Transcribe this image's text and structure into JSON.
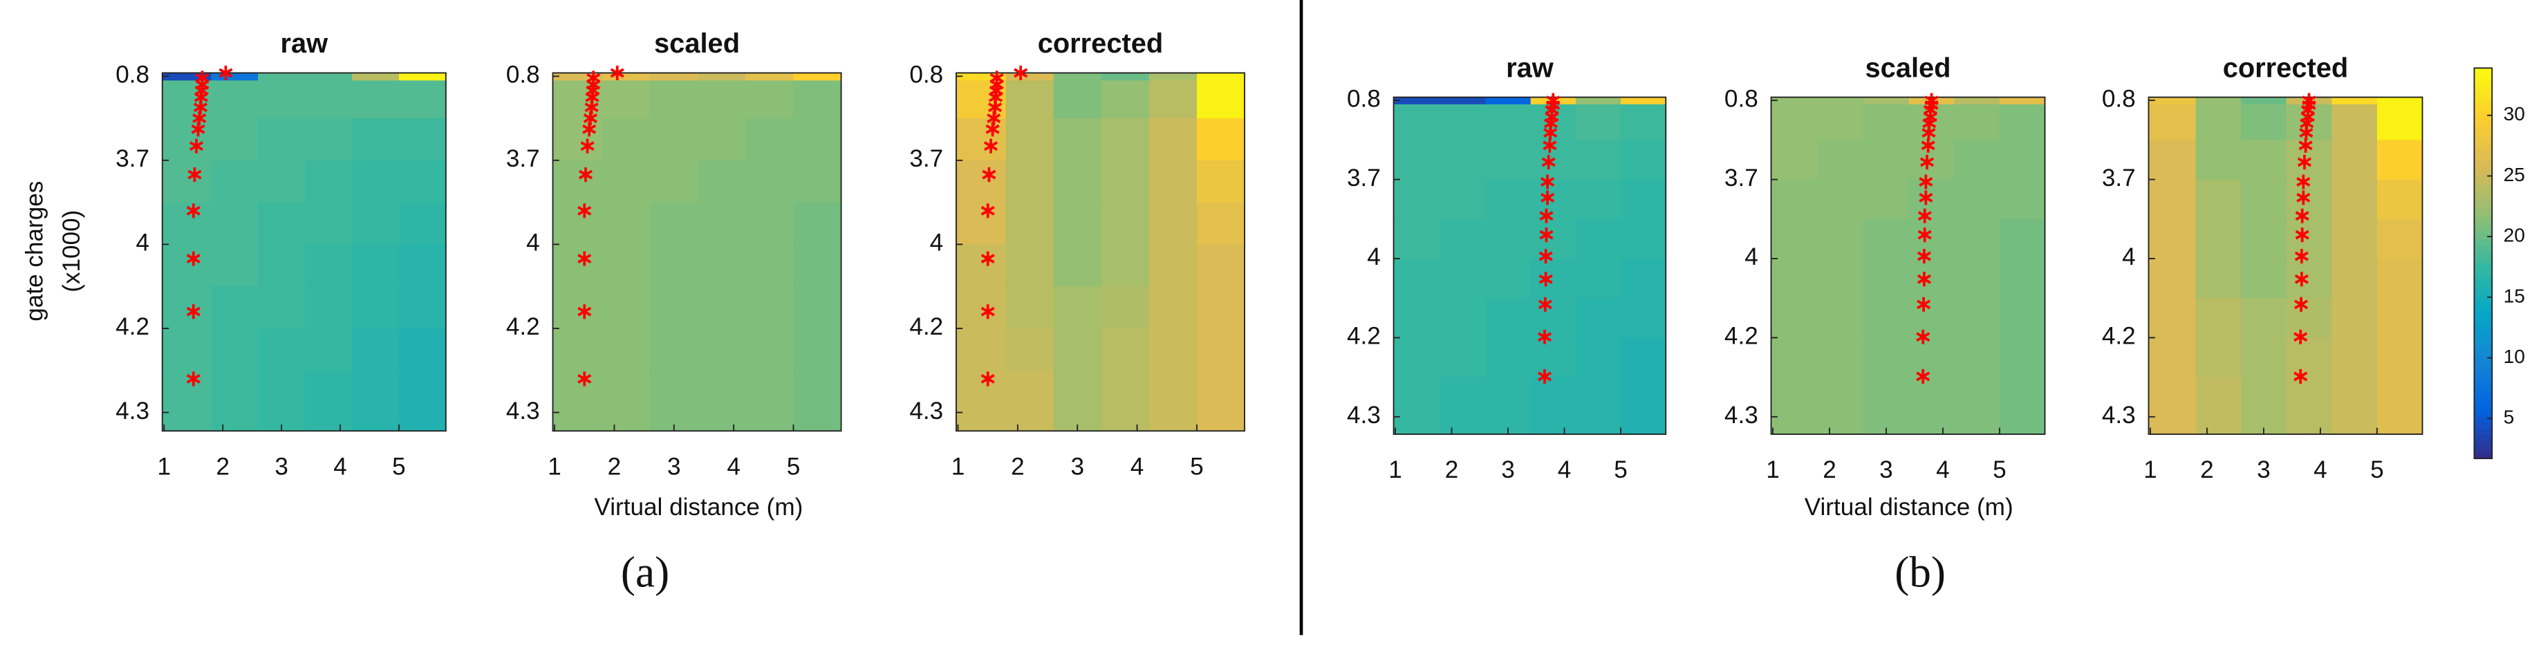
{
  "figure": {
    "ylabel": [
      "gate charges",
      "(x1000)"
    ],
    "xlabels": [
      "Virtual distance (m)",
      "Virtual distance (m)"
    ],
    "captions": [
      "(a)",
      "(b)"
    ]
  },
  "colorbar": {
    "clim": [
      1.7,
      33.9
    ],
    "ticks": [
      5,
      10,
      15,
      20,
      25,
      30
    ]
  },
  "chart_data": [
    {
      "type": "heatmap",
      "title": "raw",
      "xlim": [
        0.97,
        5.8
      ],
      "xticks": [
        1,
        2,
        3,
        4,
        5
      ],
      "ylim": [
        -0.04,
        4.22
      ],
      "yticks": [
        {
          "value": 0,
          "label": "0.8"
        },
        {
          "value": 1,
          "label": "3.7"
        },
        {
          "value": 2,
          "label": "4"
        },
        {
          "value": 3,
          "label": "4.2"
        },
        {
          "value": 4,
          "label": "4.3"
        }
      ],
      "x_edges": [
        0.97,
        1.8,
        2.6,
        3.4,
        4.2,
        5,
        5.8
      ],
      "y_edges": [
        -0.04,
        0.05,
        0.5,
        1,
        1.5,
        2,
        2.5,
        3,
        3.5,
        4.22
      ],
      "z": [
        [
          4,
          8,
          19,
          19,
          24,
          33
        ],
        [
          19,
          19,
          19,
          19,
          19,
          19
        ],
        [
          19,
          19,
          18.5,
          18.5,
          18,
          18
        ],
        [
          19,
          18.5,
          18.5,
          18,
          17.5,
          17.5
        ],
        [
          18.5,
          18.5,
          18,
          18,
          17.5,
          17
        ],
        [
          18.5,
          18.5,
          18,
          17.5,
          17,
          16.5
        ],
        [
          18.5,
          18,
          18,
          17.5,
          17,
          16.5
        ],
        [
          18.5,
          18,
          17.5,
          17.5,
          16.5,
          16
        ],
        [
          18.5,
          18,
          17.5,
          17,
          16.5,
          16
        ]
      ],
      "points": {
        "color": "#ff0000",
        "x": [
          2.05,
          1.65,
          1.65,
          1.64,
          1.63,
          1.62,
          1.6,
          1.58,
          1.55,
          1.52,
          1.5,
          1.5,
          1.5,
          1.5
        ],
        "y": [
          -0.04,
          0.02,
          0.1,
          0.17,
          0.25,
          0.37,
          0.5,
          0.63,
          0.83,
          1.17,
          1.6,
          2.17,
          2.8,
          3.6
        ]
      }
    },
    {
      "type": "heatmap",
      "title": "scaled",
      "xlim": [
        0.97,
        5.8
      ],
      "xticks": [
        1,
        2,
        3,
        4,
        5
      ],
      "ylim": [
        -0.04,
        4.22
      ],
      "yticks": [
        {
          "value": 0,
          "label": "0.8"
        },
        {
          "value": 1,
          "label": "3.7"
        },
        {
          "value": 2,
          "label": "4"
        },
        {
          "value": 3,
          "label": "4.2"
        },
        {
          "value": 4,
          "label": "4.3"
        }
      ],
      "x_edges": [
        0.97,
        1.8,
        2.6,
        3.4,
        4.2,
        5,
        5.8
      ],
      "y_edges": [
        -0.04,
        0.05,
        0.5,
        1,
        1.5,
        2,
        2.5,
        3,
        3.5,
        4.22
      ],
      "z": [
        [
          26,
          27,
          26,
          25,
          27,
          30
        ],
        [
          22,
          22,
          21.5,
          21.5,
          21.5,
          21
        ],
        [
          22,
          21.5,
          21.5,
          21.5,
          21,
          21
        ],
        [
          21.5,
          21.5,
          21.5,
          21,
          21,
          21
        ],
        [
          21.5,
          21.5,
          21,
          21,
          21,
          20.5
        ],
        [
          21.5,
          21.5,
          21,
          21,
          21,
          20.5
        ],
        [
          21.5,
          21.5,
          21,
          21,
          21,
          20.5
        ],
        [
          21.5,
          21.5,
          21,
          21,
          21,
          20.5
        ],
        [
          21.5,
          21.5,
          21,
          21,
          21,
          20.5
        ]
      ],
      "points": {
        "color": "#ff0000",
        "x": [
          2.05,
          1.65,
          1.65,
          1.64,
          1.63,
          1.62,
          1.6,
          1.58,
          1.55,
          1.52,
          1.5,
          1.5,
          1.5,
          1.5
        ],
        "y": [
          -0.04,
          0.02,
          0.1,
          0.17,
          0.25,
          0.37,
          0.5,
          0.63,
          0.83,
          1.17,
          1.6,
          2.17,
          2.8,
          3.6
        ]
      }
    },
    {
      "type": "heatmap",
      "title": "corrected",
      "xlim": [
        0.97,
        5.8
      ],
      "xticks": [
        1,
        2,
        3,
        4,
        5
      ],
      "ylim": [
        -0.04,
        4.22
      ],
      "yticks": [
        {
          "value": 0,
          "label": "0.8"
        },
        {
          "value": 1,
          "label": "3.7"
        },
        {
          "value": 2,
          "label": "4"
        },
        {
          "value": 3,
          "label": "4.2"
        },
        {
          "value": 4,
          "label": "4.3"
        }
      ],
      "x_edges": [
        0.97,
        1.8,
        2.6,
        3.4,
        4.2,
        5,
        5.8
      ],
      "y_edges": [
        -0.04,
        0.05,
        0.5,
        1,
        1.5,
        2,
        2.5,
        3,
        3.5,
        4.22
      ],
      "z": [
        [
          31,
          26,
          21,
          20,
          23,
          33
        ],
        [
          29,
          24,
          21,
          22,
          24,
          33
        ],
        [
          27,
          24,
          22,
          23,
          25,
          30
        ],
        [
          26,
          24,
          22,
          23,
          25,
          28
        ],
        [
          26,
          24,
          22,
          23,
          25,
          27
        ],
        [
          25,
          24,
          22,
          23,
          25,
          26
        ],
        [
          25,
          24,
          23,
          23.5,
          25,
          26
        ],
        [
          25,
          24.5,
          23,
          24,
          25,
          26
        ],
        [
          25,
          25,
          23,
          24,
          25,
          26
        ]
      ],
      "points": {
        "color": "#ff0000",
        "x": [
          2.05,
          1.65,
          1.65,
          1.64,
          1.63,
          1.62,
          1.6,
          1.58,
          1.55,
          1.52,
          1.5,
          1.5,
          1.5,
          1.5
        ],
        "y": [
          -0.04,
          0.02,
          0.1,
          0.17,
          0.25,
          0.37,
          0.5,
          0.63,
          0.83,
          1.17,
          1.6,
          2.17,
          2.8,
          3.6
        ]
      }
    },
    {
      "type": "heatmap",
      "title": "raw",
      "xlim": [
        0.97,
        5.8
      ],
      "xticks": [
        1,
        2,
        3,
        4,
        5
      ],
      "ylim": [
        -0.04,
        4.22
      ],
      "yticks": [
        {
          "value": 0,
          "label": "0.8"
        },
        {
          "value": 1,
          "label": "3.7"
        },
        {
          "value": 2,
          "label": "4"
        },
        {
          "value": 3,
          "label": "4.2"
        },
        {
          "value": 4,
          "label": "4.3"
        }
      ],
      "x_edges": [
        0.97,
        1.8,
        2.6,
        3.4,
        4.2,
        5,
        5.8
      ],
      "y_edges": [
        -0.04,
        0.05,
        0.5,
        1,
        1.5,
        2,
        2.5,
        3,
        3.5,
        4.22
      ],
      "z": [
        [
          4,
          4,
          6,
          30,
          22,
          30
        ],
        [
          18,
          18,
          18,
          18,
          18.5,
          18
        ],
        [
          18,
          18,
          18,
          18,
          18,
          17.5
        ],
        [
          18,
          18,
          17.5,
          17.5,
          17.5,
          17
        ],
        [
          18,
          17.5,
          17.5,
          17.5,
          17,
          17
        ],
        [
          17.5,
          17.5,
          17.5,
          17,
          17,
          16.5
        ],
        [
          17.5,
          17.5,
          17,
          17,
          16.5,
          16.5
        ],
        [
          17.5,
          17.5,
          17,
          17,
          16.5,
          16
        ],
        [
          17.5,
          17,
          17,
          16.5,
          16.5,
          16
        ]
      ],
      "points": {
        "color": "#ff0000",
        "x": [
          3.8,
          3.8,
          3.78,
          3.78,
          3.76,
          3.75,
          3.74,
          3.72,
          3.7,
          3.7,
          3.68,
          3.68,
          3.67,
          3.67,
          3.66,
          3.65,
          3.65
        ],
        "y": [
          0,
          0.06,
          0.12,
          0.21,
          0.29,
          0.41,
          0.57,
          0.78,
          1.03,
          1.23,
          1.46,
          1.7,
          1.97,
          2.26,
          2.58,
          2.99,
          3.49
        ]
      }
    },
    {
      "type": "heatmap",
      "title": "scaled",
      "xlim": [
        0.97,
        5.8
      ],
      "xticks": [
        1,
        2,
        3,
        4,
        5
      ],
      "ylim": [
        -0.04,
        4.22
      ],
      "yticks": [
        {
          "value": 0,
          "label": "0.8"
        },
        {
          "value": 1,
          "label": "3.7"
        },
        {
          "value": 2,
          "label": "4"
        },
        {
          "value": 3,
          "label": "4.2"
        },
        {
          "value": 4,
          "label": "4.3"
        }
      ],
      "x_edges": [
        0.97,
        1.8,
        2.6,
        3.4,
        4.2,
        5,
        5.8
      ],
      "y_edges": [
        -0.04,
        0.05,
        0.5,
        1,
        1.5,
        2,
        2.5,
        3,
        3.5,
        4.22
      ],
      "z": [
        [
          22,
          22,
          23,
          27,
          24,
          27
        ],
        [
          22,
          22,
          21.5,
          21.5,
          21.5,
          21
        ],
        [
          22,
          21.5,
          21.5,
          21.5,
          21,
          21
        ],
        [
          21.5,
          21.5,
          21.5,
          21,
          21,
          21
        ],
        [
          21.5,
          21.5,
          21,
          21,
          21,
          20.5
        ],
        [
          21.5,
          21.5,
          21,
          21,
          21,
          20.5
        ],
        [
          21.5,
          21.5,
          21,
          21,
          21,
          20.5
        ],
        [
          21.5,
          21.5,
          21,
          21,
          21,
          20.5
        ],
        [
          21.5,
          21.5,
          21,
          21,
          21,
          20.5
        ]
      ],
      "points": {
        "color": "#ff0000",
        "x": [
          3.8,
          3.8,
          3.78,
          3.78,
          3.76,
          3.75,
          3.74,
          3.72,
          3.7,
          3.7,
          3.68,
          3.68,
          3.67,
          3.67,
          3.66,
          3.65,
          3.65
        ],
        "y": [
          0,
          0.06,
          0.12,
          0.21,
          0.29,
          0.41,
          0.57,
          0.78,
          1.03,
          1.23,
          1.46,
          1.7,
          1.97,
          2.26,
          2.58,
          2.99,
          3.49
        ]
      }
    },
    {
      "type": "heatmap",
      "title": "corrected",
      "xlim": [
        0.97,
        5.8
      ],
      "xticks": [
        1,
        2,
        3,
        4,
        5
      ],
      "ylim": [
        -0.04,
        4.22
      ],
      "yticks": [
        {
          "value": 0,
          "label": "0.8"
        },
        {
          "value": 1,
          "label": "3.7"
        },
        {
          "value": 2,
          "label": "4"
        },
        {
          "value": 3,
          "label": "4.2"
        },
        {
          "value": 4,
          "label": "4.3"
        }
      ],
      "x_edges": [
        0.97,
        1.8,
        2.6,
        3.4,
        4.2,
        5,
        5.8
      ],
      "y_edges": [
        -0.04,
        0.05,
        0.5,
        1,
        1.5,
        2,
        2.5,
        3,
        3.5,
        4.22
      ],
      "z": [
        [
          28,
          22,
          20,
          25,
          31,
          33
        ],
        [
          27,
          22,
          21,
          22,
          25,
          33
        ],
        [
          26,
          22,
          22,
          23,
          25,
          30
        ],
        [
          26,
          23,
          22,
          23,
          25,
          28
        ],
        [
          26,
          23,
          22,
          23,
          25,
          27
        ],
        [
          26,
          23,
          22,
          23,
          25,
          26.5
        ],
        [
          26,
          24,
          23,
          23.5,
          25,
          26.5
        ],
        [
          26,
          24,
          23,
          24,
          25,
          26.5
        ],
        [
          26,
          24.5,
          23,
          24,
          25,
          26.5
        ]
      ],
      "points": {
        "color": "#ff0000",
        "x": [
          3.8,
          3.8,
          3.78,
          3.78,
          3.76,
          3.75,
          3.74,
          3.72,
          3.7,
          3.7,
          3.68,
          3.68,
          3.67,
          3.67,
          3.66,
          3.65,
          3.65
        ],
        "y": [
          0,
          0.06,
          0.12,
          0.21,
          0.29,
          0.41,
          0.57,
          0.78,
          1.03,
          1.23,
          1.46,
          1.7,
          1.97,
          2.26,
          2.58,
          2.99,
          3.49
        ]
      }
    }
  ]
}
